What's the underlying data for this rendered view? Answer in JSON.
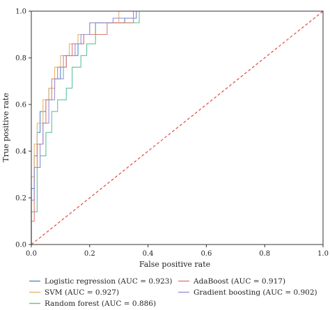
{
  "chart_data": {
    "type": "line",
    "title": "",
    "xlabel": "False positive rate",
    "ylabel": "True positive rate",
    "xlim": [
      0.0,
      1.0
    ],
    "ylim": [
      0.0,
      1.0
    ],
    "xticks": [
      0.0,
      0.2,
      0.4,
      0.6,
      0.8,
      1.0
    ],
    "yticks": [
      0.0,
      0.2,
      0.4,
      0.6,
      0.8,
      1.0
    ],
    "xtick_labels": [
      "0.0",
      "0.2",
      "0.4",
      "0.6",
      "0.8",
      "1.0"
    ],
    "ytick_labels": [
      "0.0",
      "0.2",
      "0.4",
      "0.6",
      "0.8",
      "1.0"
    ],
    "grid": false,
    "legend_position": "below plot, two columns",
    "series": [
      {
        "name": "Logistic regression (AUC = 0.923)",
        "color": "#4f8fce",
        "x": [
          0,
          0,
          0.01,
          0.01,
          0.02,
          0.02,
          0.03,
          0.03,
          0.05,
          0.05,
          0.06,
          0.06,
          0.08,
          0.08,
          0.1,
          0.1,
          0.12,
          0.12,
          0.16,
          0.16,
          0.18,
          0.18,
          0.22,
          0.22,
          0.32,
          0.32,
          0.36,
          0.36,
          1.0
        ],
        "y": [
          0,
          0.24,
          0.24,
          0.38,
          0.38,
          0.48,
          0.48,
          0.57,
          0.57,
          0.62,
          0.62,
          0.67,
          0.67,
          0.71,
          0.71,
          0.76,
          0.76,
          0.81,
          0.81,
          0.86,
          0.86,
          0.9,
          0.9,
          0.95,
          0.95,
          0.97,
          0.97,
          1.0,
          1.0
        ]
      },
      {
        "name": "SVM (AUC = 0.927)",
        "color": "#e8b470",
        "x": [
          0,
          0,
          0.01,
          0.01,
          0.02,
          0.02,
          0.04,
          0.04,
          0.06,
          0.06,
          0.08,
          0.08,
          0.1,
          0.1,
          0.13,
          0.13,
          0.16,
          0.16,
          0.2,
          0.2,
          0.3,
          0.3,
          0.34,
          0.34,
          1.0
        ],
        "y": [
          0,
          0.29,
          0.29,
          0.43,
          0.43,
          0.52,
          0.52,
          0.62,
          0.62,
          0.67,
          0.67,
          0.76,
          0.76,
          0.81,
          0.81,
          0.86,
          0.86,
          0.9,
          0.9,
          0.95,
          0.95,
          1.0,
          1.0,
          1.0,
          1.0
        ]
      },
      {
        "name": "Random forest (AUC = 0.886)",
        "color": "#5fc29a",
        "x": [
          0,
          0,
          0.02,
          0.02,
          0.03,
          0.03,
          0.05,
          0.05,
          0.07,
          0.07,
          0.09,
          0.09,
          0.12,
          0.12,
          0.14,
          0.14,
          0.17,
          0.17,
          0.19,
          0.19,
          0.22,
          0.22,
          0.37,
          0.37,
          1.0
        ],
        "y": [
          0,
          0.14,
          0.14,
          0.33,
          0.33,
          0.38,
          0.38,
          0.48,
          0.48,
          0.57,
          0.57,
          0.62,
          0.62,
          0.67,
          0.67,
          0.76,
          0.76,
          0.81,
          0.81,
          0.86,
          0.86,
          0.95,
          0.95,
          1.0,
          1.0
        ]
      },
      {
        "name": "AdaBoost (AUC = 0.917)",
        "color": "#e27c6e",
        "x": [
          0,
          0,
          0.01,
          0.01,
          0.02,
          0.02,
          0.04,
          0.04,
          0.05,
          0.05,
          0.07,
          0.07,
          0.09,
          0.09,
          0.12,
          0.12,
          0.14,
          0.14,
          0.18,
          0.18,
          0.26,
          0.26,
          0.35,
          0.35,
          1.0
        ],
        "y": [
          0,
          0.1,
          0.1,
          0.33,
          0.33,
          0.43,
          0.43,
          0.52,
          0.52,
          0.62,
          0.62,
          0.71,
          0.71,
          0.76,
          0.76,
          0.81,
          0.81,
          0.86,
          0.86,
          0.9,
          0.9,
          0.95,
          0.95,
          1.0,
          1.0
        ]
      },
      {
        "name": "Gradient boosting (AUC = 0.902)",
        "color": "#9a93d4",
        "x": [
          0,
          0,
          0.01,
          0.01,
          0.03,
          0.03,
          0.04,
          0.04,
          0.06,
          0.06,
          0.08,
          0.08,
          0.11,
          0.11,
          0.15,
          0.15,
          0.17,
          0.17,
          0.2,
          0.2,
          0.28,
          0.28,
          0.36,
          0.36,
          1.0
        ],
        "y": [
          0,
          0.19,
          0.19,
          0.33,
          0.33,
          0.43,
          0.43,
          0.52,
          0.52,
          0.62,
          0.62,
          0.71,
          0.71,
          0.81,
          0.81,
          0.86,
          0.86,
          0.9,
          0.9,
          0.95,
          0.95,
          0.97,
          0.97,
          1.0,
          1.0
        ]
      }
    ],
    "reference_line": {
      "color": "#e03a30",
      "style": "dashed",
      "x": [
        0,
        1
      ],
      "y": [
        0,
        1
      ]
    }
  }
}
